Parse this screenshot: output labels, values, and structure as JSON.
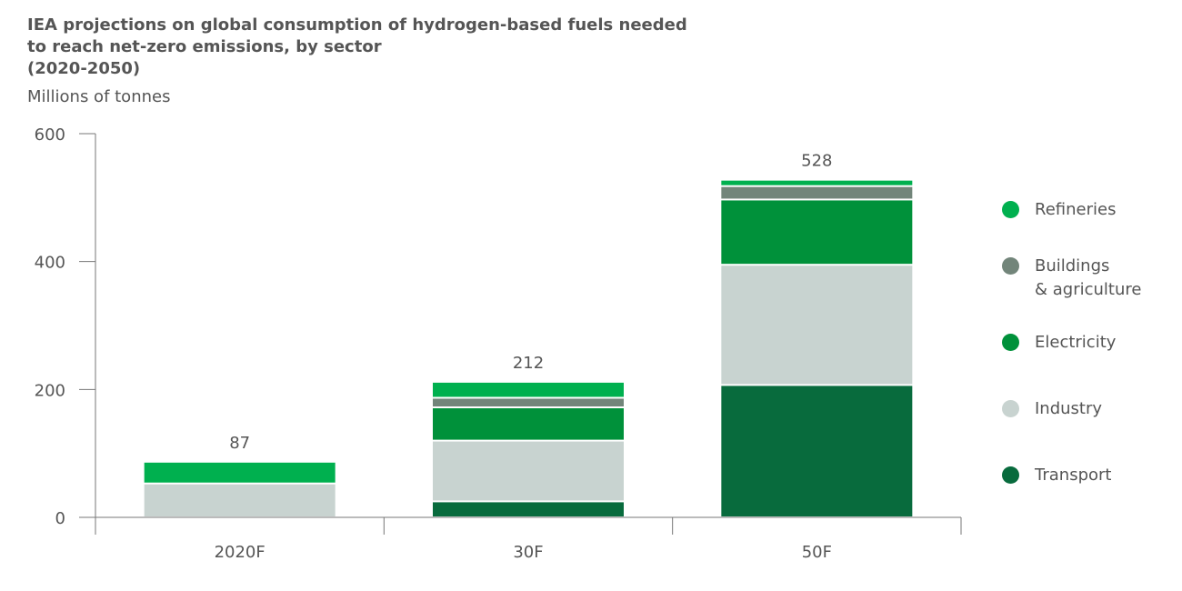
{
  "chart_data": {
    "type": "bar",
    "stacked": true,
    "title_lines": [
      "IEA projections on global consumption of hydrogen-based fuels needed",
      "to reach net-zero emissions, by sector",
      "(2020-2050)"
    ],
    "subtitle": "Millions of tonnes",
    "categories": [
      "2020F",
      "30F",
      "50F"
    ],
    "totals": [
      87,
      212,
      528
    ],
    "ylim": [
      0,
      600
    ],
    "yticks": [
      0,
      200,
      400,
      600
    ],
    "grid": false,
    "legend_position": "right",
    "series": [
      {
        "name": "Transport",
        "color": "#086b3d",
        "values": [
          0,
          25,
          207
        ]
      },
      {
        "name": "Industry",
        "color": "#c8d3d0",
        "values": [
          53,
          95,
          188
        ]
      },
      {
        "name": "Electricity",
        "color": "#00913a",
        "values": [
          0,
          52,
          102
        ]
      },
      {
        "name": "Buildings & agriculture",
        "legend_lines": [
          "Buildings",
          "& agriculture"
        ],
        "color": "#72857a",
        "values": [
          0,
          15,
          21
        ]
      },
      {
        "name": "Refineries",
        "color": "#00b04f",
        "values": [
          34,
          25,
          10
        ]
      }
    ]
  }
}
